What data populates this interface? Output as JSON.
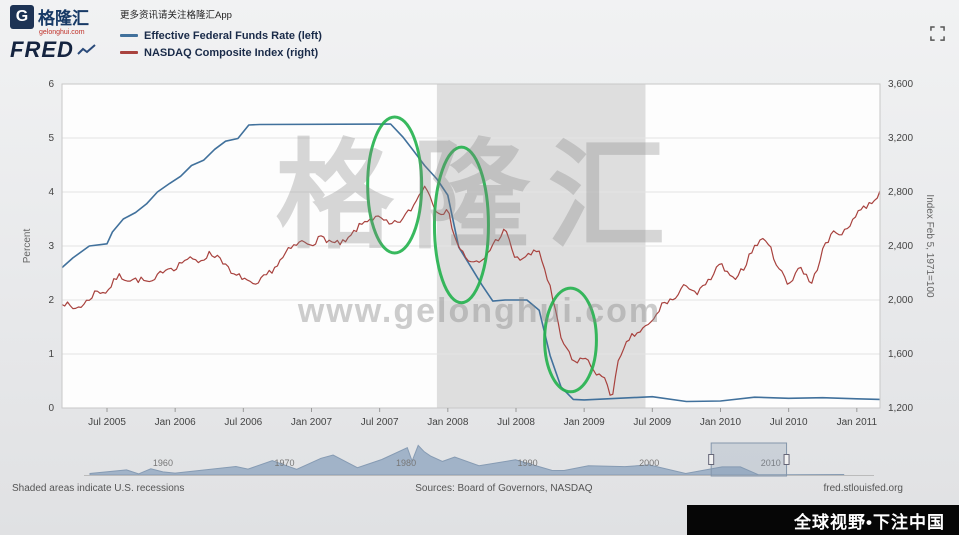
{
  "header": {
    "logo": {
      "g": "G",
      "brand_cn": "格隆汇",
      "brand": "FRED",
      "sub": "gelonghui.com",
      "tagline": "更多资讯请关注格隆汇App"
    },
    "legend": [
      {
        "label": "Effective Federal Funds Rate (left)"
      },
      {
        "label": "NASDAQ Composite Index (right)"
      }
    ]
  },
  "watermark": {
    "title": "格隆汇",
    "url": "www.gelonghui.com"
  },
  "footer": {
    "left": "Shaded areas indicate U.S. recessions",
    "center": "Sources: Board of Governors, NASDAQ",
    "right": "fred.stlouisfed.org"
  },
  "banner": {
    "text": "全球视野•下注中国"
  },
  "chart_data": {
    "type": "line",
    "x_domain": [
      2005.17,
      2011.17
    ],
    "x_ticks": [
      {
        "label": "Jul 2005",
        "year": 2005.5
      },
      {
        "label": "Jan 2006",
        "year": 2006.0
      },
      {
        "label": "Jul 2006",
        "year": 2006.5
      },
      {
        "label": "Jan 2007",
        "year": 2007.0
      },
      {
        "label": "Jul 2007",
        "year": 2007.5
      },
      {
        "label": "Jan 2008",
        "year": 2008.0
      },
      {
        "label": "Jul 2008",
        "year": 2008.5
      },
      {
        "label": "Jan 2009",
        "year": 2009.0
      },
      {
        "label": "Jul 2009",
        "year": 2009.5
      },
      {
        "label": "Jan 2010",
        "year": 2010.0
      },
      {
        "label": "Jul 2010",
        "year": 2010.5
      },
      {
        "label": "Jan 2011",
        "year": 2011.0
      }
    ],
    "left_axis": {
      "label": "Percent",
      "range": [
        0,
        6
      ],
      "ticks": [
        0,
        1,
        2,
        3,
        4,
        5,
        6
      ]
    },
    "right_axis": {
      "label": "Index Feb 5, 1971=100",
      "range": [
        1200,
        3600
      ],
      "tick_values": [
        1200,
        1600,
        2000,
        2400,
        2800,
        3200,
        3600
      ],
      "tick_labels": [
        "1,200",
        "1,600",
        "2,000",
        "2,400",
        "2,800",
        "3,200",
        "3,600"
      ]
    },
    "recession": {
      "start": 2007.92,
      "end": 2009.45
    },
    "grid": "horizontal",
    "series": [
      {
        "name": "Effective Federal Funds Rate (left)",
        "axis": "left",
        "color": "#41719c",
        "width": 1.6,
        "jitter": 0,
        "seed": 1,
        "points": [
          [
            2005.17,
            2.6
          ],
          [
            2005.25,
            2.78
          ],
          [
            2005.37,
            3.0
          ],
          [
            2005.5,
            3.04
          ],
          [
            2005.54,
            3.26
          ],
          [
            2005.62,
            3.5
          ],
          [
            2005.71,
            3.62
          ],
          [
            2005.79,
            3.78
          ],
          [
            2005.87,
            4.0
          ],
          [
            2005.96,
            4.16
          ],
          [
            2006.04,
            4.29
          ],
          [
            2006.12,
            4.49
          ],
          [
            2006.21,
            4.59
          ],
          [
            2006.29,
            4.79
          ],
          [
            2006.37,
            4.94
          ],
          [
            2006.46,
            4.99
          ],
          [
            2006.54,
            5.24
          ],
          [
            2006.62,
            5.25
          ],
          [
            2007.58,
            5.26
          ],
          [
            2007.67,
            5.02
          ],
          [
            2007.75,
            4.76
          ],
          [
            2007.83,
            4.49
          ],
          [
            2007.92,
            4.24
          ],
          [
            2008.0,
            3.94
          ],
          [
            2008.08,
            2.98
          ],
          [
            2008.17,
            2.61
          ],
          [
            2008.25,
            2.28
          ],
          [
            2008.33,
            1.98
          ],
          [
            2008.42,
            2.0
          ],
          [
            2008.58,
            2.0
          ],
          [
            2008.67,
            1.81
          ],
          [
            2008.75,
            0.97
          ],
          [
            2008.83,
            0.39
          ],
          [
            2008.92,
            0.16
          ],
          [
            2009.0,
            0.15
          ],
          [
            2009.5,
            0.21
          ],
          [
            2009.75,
            0.12
          ],
          [
            2010.0,
            0.13
          ],
          [
            2010.25,
            0.2
          ],
          [
            2010.5,
            0.18
          ],
          [
            2010.75,
            0.19
          ],
          [
            2011.0,
            0.17
          ],
          [
            2011.17,
            0.16
          ]
        ]
      },
      {
        "name": "NASDAQ Composite Index (right)",
        "axis": "right",
        "color": "#a8423e",
        "width": 1.2,
        "jitter": 24,
        "seed": 7,
        "sample_step": 0.02,
        "points": [
          [
            2005.17,
            1990
          ],
          [
            2005.25,
            1935
          ],
          [
            2005.33,
            1965
          ],
          [
            2005.42,
            2065
          ],
          [
            2005.5,
            2060
          ],
          [
            2005.58,
            2180
          ],
          [
            2005.67,
            2150
          ],
          [
            2005.75,
            2150
          ],
          [
            2005.83,
            2120
          ],
          [
            2005.92,
            2235
          ],
          [
            2006.0,
            2240
          ],
          [
            2006.08,
            2305
          ],
          [
            2006.17,
            2285
          ],
          [
            2006.25,
            2340
          ],
          [
            2006.33,
            2320
          ],
          [
            2006.42,
            2180
          ],
          [
            2006.5,
            2170
          ],
          [
            2006.58,
            2090
          ],
          [
            2006.67,
            2185
          ],
          [
            2006.75,
            2260
          ],
          [
            2006.83,
            2365
          ],
          [
            2006.92,
            2430
          ],
          [
            2007.0,
            2420
          ],
          [
            2007.08,
            2465
          ],
          [
            2007.17,
            2415
          ],
          [
            2007.25,
            2425
          ],
          [
            2007.33,
            2525
          ],
          [
            2007.42,
            2605
          ],
          [
            2007.5,
            2605
          ],
          [
            2007.58,
            2550
          ],
          [
            2007.67,
            2600
          ],
          [
            2007.75,
            2700
          ],
          [
            2007.83,
            2855
          ],
          [
            2007.92,
            2660
          ],
          [
            2008.0,
            2650
          ],
          [
            2008.08,
            2390
          ],
          [
            2008.17,
            2270
          ],
          [
            2008.25,
            2280
          ],
          [
            2008.33,
            2410
          ],
          [
            2008.42,
            2520
          ],
          [
            2008.5,
            2295
          ],
          [
            2008.58,
            2325
          ],
          [
            2008.67,
            2365
          ],
          [
            2008.75,
            2090
          ],
          [
            2008.83,
            1720
          ],
          [
            2008.92,
            1535
          ],
          [
            2009.0,
            1575
          ],
          [
            2009.08,
            1475
          ],
          [
            2009.17,
            1380
          ],
          [
            2009.2,
            1270
          ],
          [
            2009.25,
            1530
          ],
          [
            2009.33,
            1715
          ],
          [
            2009.42,
            1775
          ],
          [
            2009.5,
            1835
          ],
          [
            2009.58,
            1980
          ],
          [
            2009.67,
            2010
          ],
          [
            2009.75,
            2120
          ],
          [
            2009.83,
            2045
          ],
          [
            2009.92,
            2145
          ],
          [
            2010.0,
            2270
          ],
          [
            2010.08,
            2145
          ],
          [
            2010.17,
            2240
          ],
          [
            2010.25,
            2400
          ],
          [
            2010.33,
            2460
          ],
          [
            2010.42,
            2255
          ],
          [
            2010.5,
            2110
          ],
          [
            2010.58,
            2255
          ],
          [
            2010.67,
            2115
          ],
          [
            2010.75,
            2370
          ],
          [
            2010.83,
            2505
          ],
          [
            2010.92,
            2500
          ],
          [
            2011.0,
            2655
          ],
          [
            2011.08,
            2700
          ],
          [
            2011.17,
            2790
          ]
        ]
      }
    ],
    "annotations": [
      {
        "shape": "ellipse",
        "color": "#22b14c",
        "year": 2007.61,
        "value": 4.13,
        "rx_years": 0.198,
        "ry_units": 1.26
      },
      {
        "shape": "ellipse",
        "color": "#22b14c",
        "year": 2008.1,
        "value": 3.39,
        "rx_years": 0.198,
        "ry_units": 1.44
      },
      {
        "shape": "ellipse",
        "color": "#22b14c",
        "year": 2008.9,
        "value": 1.26,
        "rx_years": 0.19,
        "ry_units": 0.96
      }
    ],
    "minimap": {
      "x_domain": [
        1954,
        2018
      ],
      "y_max": 20,
      "labels": [
        {
          "label": "1960",
          "year": 1960
        },
        {
          "label": "1970",
          "year": 1970
        },
        {
          "label": "1980",
          "year": 1980
        },
        {
          "label": "1990",
          "year": 1990
        },
        {
          "label": "2000",
          "year": 2000
        },
        {
          "label": "2010",
          "year": 2010
        }
      ],
      "brush": [
        2005.1,
        2011.3
      ],
      "series": [
        [
          1954,
          1.0
        ],
        [
          1957,
          3.3
        ],
        [
          1958,
          0.7
        ],
        [
          1959,
          4.0
        ],
        [
          1960,
          2.0
        ],
        [
          1961,
          1.2
        ],
        [
          1966,
          5.5
        ],
        [
          1967,
          3.8
        ],
        [
          1969,
          9.2
        ],
        [
          1971,
          3.7
        ],
        [
          1973,
          10.8
        ],
        [
          1974,
          12.9
        ],
        [
          1976,
          4.7
        ],
        [
          1978,
          10.0
        ],
        [
          1980.1,
          17.6
        ],
        [
          1980.5,
          9.0
        ],
        [
          1981.0,
          19.1
        ],
        [
          1981.5,
          15.0
        ],
        [
          1982,
          12.3
        ],
        [
          1983,
          8.8
        ],
        [
          1984,
          11.6
        ],
        [
          1986,
          6.0
        ],
        [
          1989,
          9.8
        ],
        [
          1992,
          3.0
        ],
        [
          1993,
          2.9
        ],
        [
          1995,
          6.0
        ],
        [
          1998,
          5.4
        ],
        [
          2000,
          6.5
        ],
        [
          2003,
          1.0
        ],
        [
          2006,
          5.25
        ],
        [
          2007.5,
          5.25
        ],
        [
          2009,
          0.15
        ],
        [
          2011,
          0.15
        ],
        [
          2016,
          0.3
        ]
      ]
    }
  }
}
